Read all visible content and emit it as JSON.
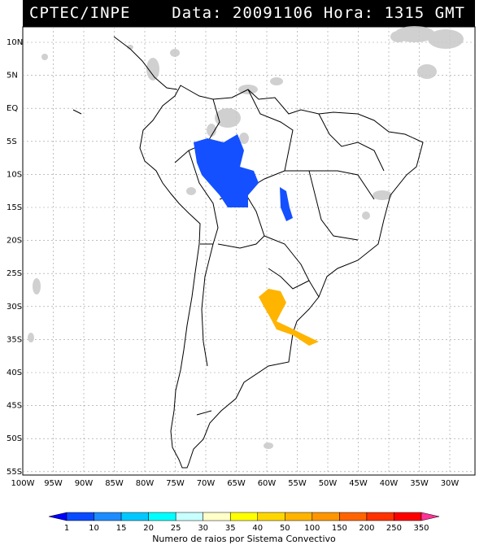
{
  "header": {
    "source": "CPTEC/INPE",
    "datetime": "Data: 20091106 Hora: 1315 GMT"
  },
  "latitude_labels": [
    "10N",
    "5N",
    "EQ",
    "5S",
    "10S",
    "15S",
    "20S",
    "25S",
    "30S",
    "35S",
    "40S",
    "45S",
    "50S",
    "55S"
  ],
  "longitude_labels": [
    "100W",
    "95W",
    "90W",
    "85W",
    "80W",
    "75W",
    "70W",
    "65W",
    "60W",
    "55W",
    "50W",
    "45W",
    "40W",
    "35W",
    "30W"
  ],
  "legend": {
    "title": "Numero de raios por Sistema Convectivo",
    "ticks": [
      "1",
      "10",
      "15",
      "20",
      "25",
      "30",
      "35",
      "40",
      "50",
      "100",
      "150",
      "200",
      "250",
      "350"
    ],
    "colors": [
      "#0000ff",
      "#0a4bff",
      "#1e8cff",
      "#00c8ff",
      "#00ffff",
      "#c8ffff",
      "#ffffc8",
      "#ffff00",
      "#ffd700",
      "#ffb400",
      "#ff9600",
      "#ff6400",
      "#ff3200",
      "#ff0000",
      "#ff3296"
    ]
  },
  "features": {
    "cloud_color": "#c8c8c8",
    "blue_system_color": "#1450ff",
    "orange_system_color": "#ffb400"
  }
}
